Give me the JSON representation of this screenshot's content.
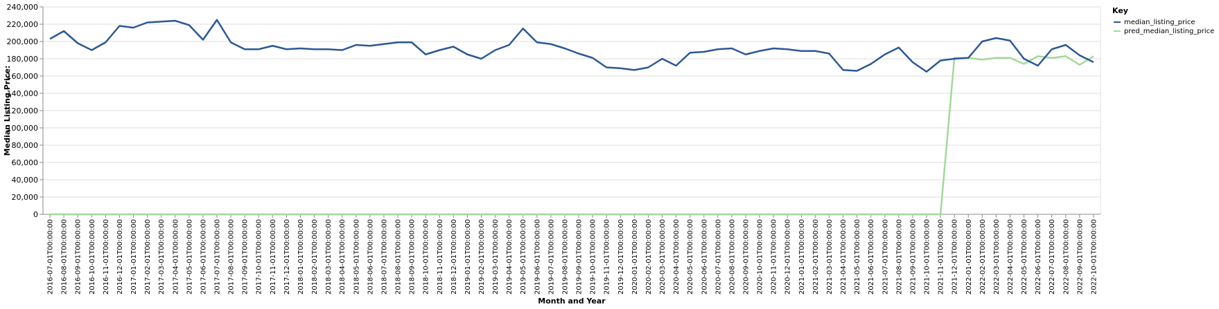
{
  "chart_data": {
    "type": "line",
    "xlabel": "Month and Year",
    "ylabel": "Median Listing Price:",
    "ylim": [
      0,
      240000
    ],
    "yticks": [
      0,
      20000,
      40000,
      60000,
      80000,
      100000,
      120000,
      140000,
      160000,
      180000,
      200000,
      220000,
      240000
    ],
    "ytick_labels": [
      "0",
      "20,000",
      "40,000",
      "60,000",
      "80,000",
      "100,000",
      "120,000",
      "140,000",
      "160,000",
      "180,000",
      "200,000",
      "220,000",
      "240,000"
    ],
    "grid": true,
    "legend": {
      "title": "Key",
      "placement": "top-right",
      "entries": [
        "median_listing_price",
        "pred_median_listing_price"
      ]
    },
    "colors": {
      "median_listing_price": "#2b5797",
      "pred_median_listing_price": "#a1d99b"
    },
    "x": [
      "2016-07-01T00:00:00",
      "2016-08-01T00:00:00",
      "2016-09-01T00:00:00",
      "2016-10-01T00:00:00",
      "2016-11-01T00:00:00",
      "2016-12-01T00:00:00",
      "2017-01-01T00:00:00",
      "2017-02-01T00:00:00",
      "2017-03-01T00:00:00",
      "2017-04-01T00:00:00",
      "2017-05-01T00:00:00",
      "2017-06-01T00:00:00",
      "2017-07-01T00:00:00",
      "2017-08-01T00:00:00",
      "2017-09-01T00:00:00",
      "2017-10-01T00:00:00",
      "2017-11-01T00:00:00",
      "2017-12-01T00:00:00",
      "2018-01-01T00:00:00",
      "2018-02-01T00:00:00",
      "2018-03-01T00:00:00",
      "2018-04-01T00:00:00",
      "2018-05-01T00:00:00",
      "2018-06-01T00:00:00",
      "2018-07-01T00:00:00",
      "2018-08-01T00:00:00",
      "2018-09-01T00:00:00",
      "2018-10-01T00:00:00",
      "2018-11-01T00:00:00",
      "2018-12-01T00:00:00",
      "2019-01-01T00:00:00",
      "2019-02-01T00:00:00",
      "2019-03-01T00:00:00",
      "2019-04-01T00:00:00",
      "2019-05-01T00:00:00",
      "2019-06-01T00:00:00",
      "2019-07-01T00:00:00",
      "2019-08-01T00:00:00",
      "2019-09-01T00:00:00",
      "2019-10-01T00:00:00",
      "2019-11-01T00:00:00",
      "2019-12-01T00:00:00",
      "2020-01-01T00:00:00",
      "2020-02-01T00:00:00",
      "2020-03-01T00:00:00",
      "2020-04-01T00:00:00",
      "2020-05-01T00:00:00",
      "2020-06-01T00:00:00",
      "2020-07-01T00:00:00",
      "2020-08-01T00:00:00",
      "2020-09-01T00:00:00",
      "2020-10-01T00:00:00",
      "2020-11-01T00:00:00",
      "2020-12-01T00:00:00",
      "2021-01-01T00:00:00",
      "2021-02-01T00:00:00",
      "2021-03-01T00:00:00",
      "2021-04-01T00:00:00",
      "2021-05-01T00:00:00",
      "2021-06-01T00:00:00",
      "2021-07-01T00:00:00",
      "2021-08-01T00:00:00",
      "2021-09-01T00:00:00",
      "2021-10-01T00:00:00",
      "2021-11-01T00:00:00",
      "2021-12-01T00:00:00",
      "2022-01-01T00:00:00",
      "2022-02-01T00:00:00",
      "2022-03-01T00:00:00",
      "2022-04-01T00:00:00",
      "2022-05-01T00:00:00",
      "2022-06-01T00:00:00",
      "2022-07-01T00:00:00",
      "2022-08-01T00:00:00",
      "2022-09-01T00:00:00",
      "2022-10-01T00:00:00"
    ],
    "series": [
      {
        "name": "median_listing_price",
        "values": [
          203000,
          212000,
          198000,
          190000,
          199000,
          218000,
          216000,
          222000,
          223000,
          224000,
          219000,
          202000,
          225000,
          199000,
          191000,
          191000,
          195000,
          191000,
          192000,
          191000,
          191000,
          190000,
          196000,
          195000,
          197000,
          199000,
          199000,
          185000,
          190000,
          194000,
          185000,
          180000,
          190000,
          196000,
          215000,
          199000,
          197000,
          192000,
          186000,
          181000,
          170000,
          169000,
          167000,
          170000,
          180000,
          172000,
          187000,
          188000,
          191000,
          192000,
          185000,
          189000,
          192000,
          191000,
          189000,
          189000,
          186000,
          167000,
          166000,
          174000,
          185000,
          193000,
          176000,
          165000,
          178000,
          180000,
          181000,
          200000,
          204000,
          201000,
          180000,
          172000,
          191000,
          196000,
          184000,
          176000
        ]
      },
      {
        "name": "pred_median_listing_price",
        "values": [
          0,
          0,
          0,
          0,
          0,
          0,
          0,
          0,
          0,
          0,
          0,
          0,
          0,
          0,
          0,
          0,
          0,
          0,
          0,
          0,
          0,
          0,
          0,
          0,
          0,
          0,
          0,
          0,
          0,
          0,
          0,
          0,
          0,
          0,
          0,
          0,
          0,
          0,
          0,
          0,
          0,
          0,
          0,
          0,
          0,
          0,
          0,
          0,
          0,
          0,
          0,
          0,
          0,
          0,
          0,
          0,
          0,
          0,
          0,
          0,
          0,
          0,
          0,
          0,
          0,
          181000,
          181000,
          179000,
          181000,
          181000,
          174000,
          183000,
          181000,
          183000,
          173000,
          183000
        ]
      }
    ]
  }
}
